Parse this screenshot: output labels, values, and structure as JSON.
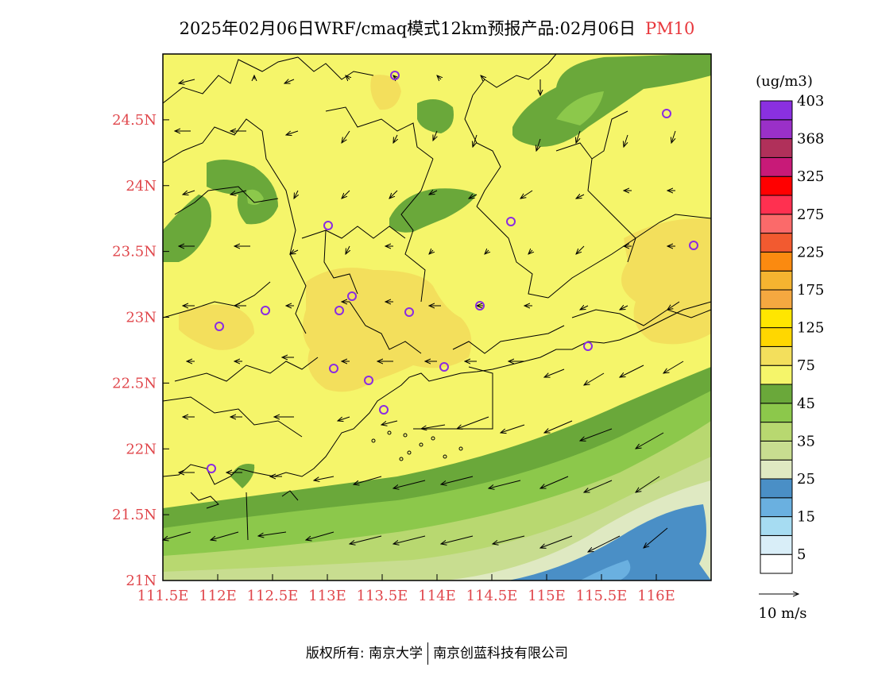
{
  "title": {
    "main": "2025年02月06日WRF/cmaq模式12km预报产品:02月06日",
    "variable": "PM10"
  },
  "map": {
    "lat_ticks": [
      "24.5N",
      "24N",
      "23.5N",
      "23N",
      "22.5N",
      "22N",
      "21.5N",
      "21N"
    ],
    "lon_ticks": [
      "111.5E",
      "112E",
      "112.5E",
      "113E",
      "113.5E",
      "114E",
      "114.5E",
      "115E",
      "115.5E",
      "116E"
    ],
    "lat_range": [
      21.0,
      25.0
    ],
    "lon_range": [
      111.5,
      116.5
    ]
  },
  "legend": {
    "unit": "(ug/m3)",
    "colors": [
      "#ffffff",
      "#d9eef8",
      "#a6dcf2",
      "#6ab0e0",
      "#4a8fc6",
      "#dfe9c2",
      "#c8dd90",
      "#b8d870",
      "#8cc84b",
      "#6aa83a",
      "#f5f56a",
      "#f3df5c",
      "#ffd700",
      "#ffe600",
      "#f5a840",
      "#f5b430",
      "#fb8a10",
      "#f25a30",
      "#fb6a6a",
      "#ff3050",
      "#ff0000",
      "#c81a78",
      "#b0305a",
      "#9a30c8",
      "#8a30e0"
    ],
    "labels": [
      "5",
      "15",
      "25",
      "35",
      "45",
      "75",
      "125",
      "175",
      "225",
      "275",
      "325",
      "368",
      "403"
    ]
  },
  "wind_scale": {
    "label": "10 m/s"
  },
  "footer": {
    "left": "版权所有: 南京大学",
    "right": "南京创蓝科技有限公司"
  }
}
